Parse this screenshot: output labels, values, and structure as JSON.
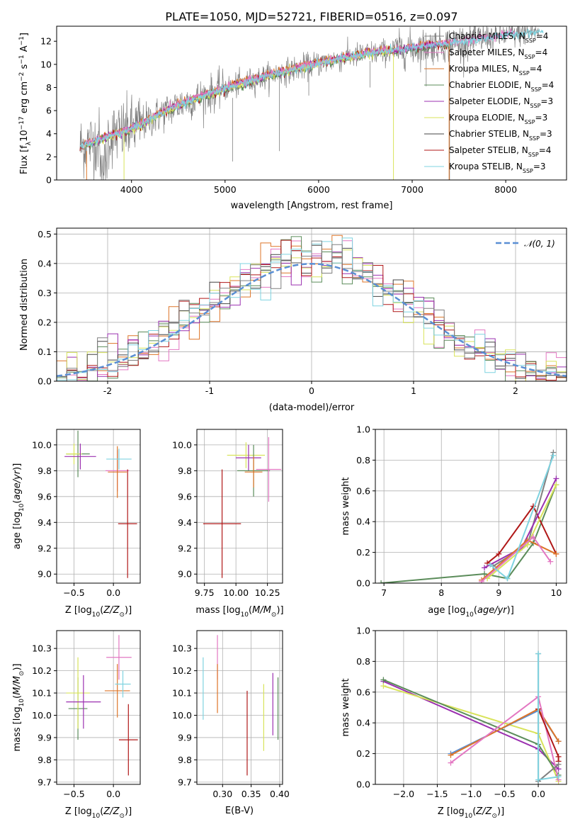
{
  "title": "PLATE=1050, MJD=52721, FIBERID=0516, z=0.097",
  "colors": {
    "chabrier_miles": "#808080",
    "salpeter_miles": "#e377c2",
    "kroupa_miles": "#dd7528",
    "chabrier_elodie": "#5b8c5a",
    "salpeter_elodie": "#9b30b0",
    "kroupa_elodie": "#d8e35a",
    "chabrier_stelib": "#444444",
    "salpeter_stelib": "#b01818",
    "kroupa_stelib": "#7fd3e0",
    "normal": "#5a8fd4"
  },
  "legend_labels": [
    {
      "name": "Chabrier MILES, N",
      "sub": "SSP",
      "tail": "=4"
    },
    {
      "name": "Salpeter MILES, N",
      "sub": "SSP",
      "tail": "=4"
    },
    {
      "name": "Kroupa MILES, N",
      "sub": "SSP",
      "tail": "=4"
    },
    {
      "name": "Chabrier ELODIE, N",
      "sub": "SSP",
      "tail": "=4"
    },
    {
      "name": "Salpeter ELODIE, N",
      "sub": "SSP",
      "tail": "=3"
    },
    {
      "name": "Kroupa ELODIE, N",
      "sub": "SSP",
      "tail": "=3"
    },
    {
      "name": "Chabrier STELIB, N",
      "sub": "SSP",
      "tail": "=3"
    },
    {
      "name": "Salpeter STELIB, N",
      "sub": "SSP",
      "tail": "=4"
    },
    {
      "name": "Kroupa STELIB, N",
      "sub": "SSP",
      "tail": "=3"
    }
  ],
  "chart_data": [
    {
      "type": "line",
      "panel": "spectrum",
      "title": "PLATE=1050, MJD=52721, FIBERID=0516, z=0.097",
      "xlabel": "wavelength [Angstrom, rest frame]",
      "ylabel": "Flux [fλ10^-17 erg cm^-2 s^-1 A^-1]",
      "xlim": [
        3200,
        8650
      ],
      "ylim": [
        0,
        13.3
      ],
      "xticks": [
        4000,
        5000,
        6000,
        7000,
        8000
      ],
      "yticks": [
        0,
        2,
        4,
        6,
        8,
        10,
        12
      ],
      "grid": false,
      "legend_position": "top-right",
      "series": [
        {
          "name": "Chabrier MILES, NSSP=4",
          "x": [
            3500,
            4000,
            4500,
            5000,
            5500,
            6000,
            6500,
            7000,
            7400
          ],
          "y": [
            2.7,
            4.5,
            6.6,
            8.0,
            9.2,
            10.2,
            11.0,
            11.5,
            11.9
          ]
        },
        {
          "name": "Kroupa STELIB, NSSP=3",
          "x": [
            3450,
            4000,
            4500,
            5000,
            5500,
            6000,
            6500,
            7000,
            7500,
            8000,
            8400
          ],
          "y": [
            2.9,
            4.4,
            6.5,
            7.9,
            9.1,
            10.1,
            10.9,
            11.4,
            11.9,
            12.5,
            12.9
          ]
        }
      ]
    },
    {
      "type": "line",
      "panel": "residuals",
      "xlabel": "(data-model)/error",
      "ylabel": "Normed distribution",
      "xlim": [
        -2.5,
        2.5
      ],
      "ylim": [
        0,
        0.52
      ],
      "xticks": [
        -2,
        -1,
        0,
        1,
        2
      ],
      "yticks": [
        0.0,
        0.1,
        0.2,
        0.3,
        0.4,
        0.5
      ],
      "grid": true,
      "legend_position": "top-right",
      "legend_label": "𝒩(0, 1)",
      "series": [
        {
          "name": "𝒩(0, 1)",
          "x": [
            -2.4,
            -2.0,
            -1.6,
            -1.2,
            -0.8,
            -0.4,
            0.0,
            0.4,
            0.8,
            1.2,
            1.6,
            2.0,
            2.4
          ],
          "y": [
            0.022,
            0.054,
            0.111,
            0.194,
            0.29,
            0.368,
            0.399,
            0.368,
            0.29,
            0.194,
            0.111,
            0.054,
            0.022
          ]
        },
        {
          "name": "",
          "x": [
            -2.4,
            -2.0,
            -1.6,
            -1.2,
            -0.8,
            -0.4,
            0.0,
            0.4,
            0.8,
            1.2,
            1.6,
            2.0,
            2.4
          ],
          "y": [
            0.02,
            0.06,
            0.1,
            0.2,
            0.3,
            0.42,
            0.43,
            0.38,
            0.3,
            0.18,
            0.1,
            0.05,
            0.02
          ]
        }
      ]
    },
    {
      "type": "scatter",
      "panel": "age-vs-Z",
      "xlabel": "Z [log10(Z/Z⊙)]",
      "ylabel": "age  [log10(age/yr)]",
      "xlim": [
        -0.72,
        0.34
      ],
      "ylim": [
        8.93,
        10.12
      ],
      "xticks": [
        -0.5,
        0.0
      ],
      "xtick_labels": [
        "−0.5",
        "0.0"
      ],
      "yticks": [
        9.0,
        9.2,
        9.4,
        9.6,
        9.8,
        10.0
      ],
      "grid": true,
      "points": [
        {
          "x": -0.45,
          "y": 9.93,
          "xerr": 0.15,
          "yerr": 0.18,
          "c": "#5b8c5a"
        },
        {
          "x": -0.5,
          "y": 9.93,
          "xerr": 0.1,
          "yerr": 0.08,
          "c": "#d8e35a"
        },
        {
          "x": -0.42,
          "y": 9.91,
          "xerr": 0.2,
          "yerr": 0.1,
          "c": "#9b30b0"
        },
        {
          "x": 0.05,
          "y": 9.8,
          "xerr": 0.15,
          "yerr": 0.16,
          "c": "#e377c2"
        },
        {
          "x": 0.05,
          "y": 9.79,
          "xerr": 0.12,
          "yerr": 0.2,
          "c": "#dd7528"
        },
        {
          "x": 0.07,
          "y": 9.89,
          "xerr": 0.16,
          "yerr": 0.08,
          "c": "#7fd3e0"
        },
        {
          "x": 0.18,
          "y": 9.39,
          "xerr": 0.12,
          "yerr": 0.42,
          "c": "#b01818"
        }
      ]
    },
    {
      "type": "scatter",
      "panel": "age-vs-mass",
      "xlabel": "mass [log10(M/M⊙)]",
      "ylim": [
        8.93,
        10.12
      ],
      "xlim": [
        9.69,
        10.37
      ],
      "xticks": [
        9.75,
        10.0,
        10.25
      ],
      "xtick_labels": [
        "9.75",
        "10.00",
        "10.25"
      ],
      "yticks": [
        9.0,
        9.2,
        9.4,
        9.6,
        9.8,
        10.0
      ],
      "grid": true,
      "points": [
        {
          "x": 10.08,
          "y": 9.92,
          "xerr": 0.15,
          "yerr": 0.1,
          "c": "#d8e35a"
        },
        {
          "x": 10.1,
          "y": 9.9,
          "xerr": 0.1,
          "yerr": 0.1,
          "c": "#9b30b0"
        },
        {
          "x": 10.14,
          "y": 9.8,
          "xerr": 0.13,
          "yerr": 0.2,
          "c": "#5b8c5a"
        },
        {
          "x": 10.26,
          "y": 9.81,
          "xerr": 0.1,
          "yerr": 0.25,
          "c": "#e377c2"
        },
        {
          "x": 10.14,
          "y": 9.79,
          "xerr": 0.07,
          "yerr": 0.12,
          "c": "#dd7528"
        },
        {
          "x": 9.89,
          "y": 9.39,
          "xerr": 0.15,
          "yerr": 0.42,
          "c": "#b01818"
        }
      ]
    },
    {
      "type": "line",
      "panel": "mass-weight-vs-age",
      "xlabel": "age  [log10(age/yr)]",
      "ylabel": "mass weight",
      "xlim": [
        6.85,
        10.18
      ],
      "ylim": [
        0,
        1.0
      ],
      "xticks": [
        7,
        8,
        9,
        10
      ],
      "yticks": [
        0.0,
        0.2,
        0.4,
        0.6,
        0.8,
        1.0
      ],
      "grid": true,
      "series": [
        {
          "name": "",
          "c": "#5b8c5a",
          "x": [
            6.95,
            8.75,
            9.15,
            9.6,
            10.0
          ],
          "y": [
            0.0,
            0.06,
            0.03,
            0.26,
            0.64
          ]
        },
        {
          "name": "",
          "c": "#b01818",
          "x": [
            8.8,
            9.0,
            9.6,
            10.0
          ],
          "y": [
            0.13,
            0.19,
            0.5,
            0.19
          ]
        },
        {
          "name": "",
          "c": "#808080",
          "x": [
            8.9,
            9.5,
            9.95
          ],
          "y": [
            0.11,
            0.25,
            0.85
          ]
        },
        {
          "name": "",
          "c": "#9b30b0",
          "x": [
            8.75,
            9.4,
            10.0
          ],
          "y": [
            0.1,
            0.23,
            0.68
          ]
        },
        {
          "name": "",
          "c": "#d8e35a",
          "x": [
            8.8,
            9.5,
            10.0
          ],
          "y": [
            0.03,
            0.25,
            0.64
          ]
        },
        {
          "name": "",
          "c": "#dd7528",
          "x": [
            8.7,
            9.5,
            10.0
          ],
          "y": [
            0.02,
            0.28,
            0.19
          ]
        },
        {
          "name": "",
          "c": "#e377c2",
          "x": [
            8.7,
            9.6,
            9.9
          ],
          "y": [
            0.01,
            0.3,
            0.14
          ]
        },
        {
          "name": "",
          "c": "#7fd3e0",
          "x": [
            8.85,
            9.15,
            9.95
          ],
          "y": [
            0.12,
            0.03,
            0.83
          ]
        }
      ]
    },
    {
      "type": "scatter",
      "panel": "mass-vs-Z",
      "xlabel": "Z [log10(Z/Z⊙)]",
      "ylabel": "mass [log10(M/M⊙)]",
      "xlim": [
        -0.72,
        0.34
      ],
      "ylim": [
        9.69,
        10.38
      ],
      "xticks": [
        -0.5,
        0.0
      ],
      "xtick_labels": [
        "−0.5",
        "0.0"
      ],
      "yticks": [
        9.7,
        9.8,
        9.9,
        10.0,
        10.1,
        10.2,
        10.3
      ],
      "grid": true,
      "points": [
        {
          "x": -0.45,
          "y": 10.03,
          "xerr": 0.12,
          "yerr": 0.14,
          "c": "#5b8c5a"
        },
        {
          "x": -0.45,
          "y": 10.1,
          "xerr": 0.15,
          "yerr": 0.16,
          "c": "#d8e35a"
        },
        {
          "x": -0.38,
          "y": 10.06,
          "xerr": 0.22,
          "yerr": 0.12,
          "c": "#9b30b0"
        },
        {
          "x": 0.07,
          "y": 10.26,
          "xerr": 0.16,
          "yerr": 0.1,
          "c": "#e377c2"
        },
        {
          "x": 0.05,
          "y": 10.11,
          "xerr": 0.16,
          "yerr": 0.12,
          "c": "#dd7528"
        },
        {
          "x": 0.12,
          "y": 10.14,
          "xerr": 0.1,
          "yerr": 0.06,
          "c": "#7fd3e0"
        },
        {
          "x": 0.19,
          "y": 9.89,
          "xerr": 0.12,
          "yerr": 0.16,
          "c": "#b01818"
        }
      ]
    },
    {
      "type": "scatter",
      "panel": "mass-vs-EBV",
      "xlabel": "E(B-V)",
      "xlim": [
        0.255,
        0.405
      ],
      "ylim": [
        9.69,
        10.38
      ],
      "xticks": [
        0.3,
        0.35,
        0.4
      ],
      "xtick_labels": [
        "0.30",
        "0.35",
        "0.40"
      ],
      "yticks": [
        9.7,
        9.8,
        9.9,
        10.0,
        10.1,
        10.2,
        10.3
      ],
      "grid": true,
      "points": [
        {
          "x": 0.266,
          "y": 10.12,
          "xerr": 0,
          "yerr": 0.14,
          "c": "#7fd3e0"
        },
        {
          "x": 0.291,
          "y": 10.26,
          "xerr": 0,
          "yerr": 0.1,
          "c": "#e377c2"
        },
        {
          "x": 0.291,
          "y": 10.12,
          "xerr": 0,
          "yerr": 0.11,
          "c": "#dd7528"
        },
        {
          "x": 0.343,
          "y": 9.92,
          "xerr": 0,
          "yerr": 0.19,
          "c": "#b01818"
        },
        {
          "x": 0.372,
          "y": 9.99,
          "xerr": 0,
          "yerr": 0.15,
          "c": "#d8e35a"
        },
        {
          "x": 0.388,
          "y": 10.05,
          "xerr": 0,
          "yerr": 0.14,
          "c": "#9b30b0"
        },
        {
          "x": 0.397,
          "y": 10.03,
          "xerr": 0,
          "yerr": 0.14,
          "c": "#5b8c5a"
        }
      ]
    },
    {
      "type": "line",
      "panel": "mass-weight-vs-Z",
      "xlabel": "Z [log10(Z/Z⊙)]",
      "ylabel": "mass weight",
      "xlim": [
        -2.42,
        0.42
      ],
      "ylim": [
        0,
        1.0
      ],
      "xticks": [
        -2.0,
        -1.5,
        -1.0,
        -0.5,
        0.0
      ],
      "xtick_labels": [
        "−2.0",
        "−1.5",
        "−1.0",
        "−0.5",
        "0.0"
      ],
      "yticks": [
        0.0,
        0.2,
        0.4,
        0.6,
        0.8,
        1.0
      ],
      "grid": true,
      "series": [
        {
          "name": "",
          "c": "#9b30b0",
          "x": [
            -2.3,
            0.0,
            0.3
          ],
          "y": [
            0.67,
            0.23,
            0.1
          ]
        },
        {
          "name": "",
          "c": "#d8e35a",
          "x": [
            -2.3,
            0.0,
            0.3
          ],
          "y": [
            0.64,
            0.33,
            0.02
          ]
        },
        {
          "name": "",
          "c": "#5b8c5a",
          "x": [
            -2.3,
            0.0,
            0.3
          ],
          "y": [
            0.68,
            0.26,
            0.06
          ]
        },
        {
          "name": "",
          "c": "#5a8fd4",
          "x": [
            -1.3,
            0.0,
            0.3
          ],
          "y": [
            0.2,
            0.48,
            0.28
          ]
        },
        {
          "name": "",
          "c": "#dd7528",
          "x": [
            -1.3,
            0.0,
            0.3
          ],
          "y": [
            0.19,
            0.49,
            0.28
          ]
        },
        {
          "name": "",
          "c": "#e377c2",
          "x": [
            -1.3,
            0.0,
            0.3
          ],
          "y": [
            0.14,
            0.57,
            0.03
          ]
        },
        {
          "name": "",
          "c": "#b01818",
          "x": [
            0.0,
            0.3,
            0.3
          ],
          "y": [
            0.49,
            0.18,
            0.15
          ]
        },
        {
          "name": "",
          "c": "#808080",
          "x": [
            0.0,
            0.0,
            0.3
          ],
          "y": [
            0.85,
            0.02,
            0.13
          ]
        },
        {
          "name": "",
          "c": "#7fd3e0",
          "x": [
            0.0,
            0.0,
            0.3
          ],
          "y": [
            0.85,
            0.03,
            0.05
          ]
        }
      ]
    }
  ]
}
